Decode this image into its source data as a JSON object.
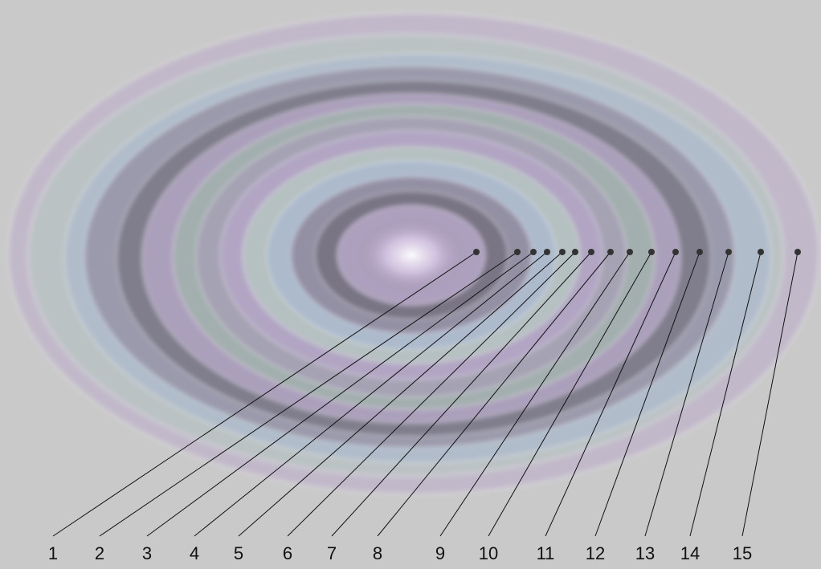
{
  "figure": {
    "callouts": [
      {
        "number": "1"
      },
      {
        "number": "2"
      },
      {
        "number": "3"
      },
      {
        "number": "4"
      },
      {
        "number": "5"
      },
      {
        "number": "6"
      },
      {
        "number": "7"
      },
      {
        "number": "8"
      },
      {
        "number": "9"
      },
      {
        "number": "10"
      },
      {
        "number": "11"
      },
      {
        "number": "12"
      },
      {
        "number": "13"
      },
      {
        "number": "14"
      },
      {
        "number": "15"
      }
    ],
    "colors": {
      "paper": "#c9c9c9",
      "ink": "#111111",
      "ring_palette": [
        "#b7a6c9",
        "#b6ccc0",
        "#a8b8d0",
        "#8a7f93",
        "#6e6a78",
        "#c3b2d5",
        "#9fb5a9",
        "#a59cb7"
      ]
    }
  }
}
